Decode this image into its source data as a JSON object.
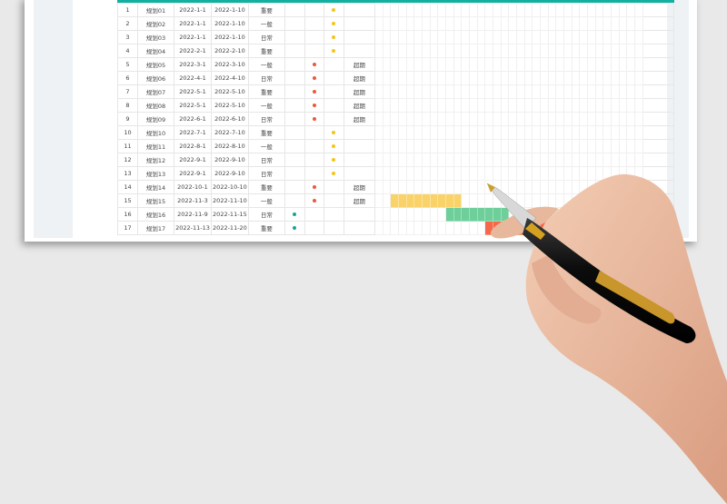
{
  "colors": {
    "header": "#12b0a0",
    "yellow": "#f5c518",
    "red": "#ea5a3c",
    "teal": "#1aa39a",
    "bar_yellow": "#f9d36a",
    "bar_green": "#6ecf9a",
    "bar_red": "#f5694a"
  },
  "gantt_columns": 34,
  "rows": [
    {
      "no": "1",
      "name": "规划01",
      "start": "2022-1-1",
      "end": "2022-1-10",
      "type": "重要",
      "dot": 3,
      "status": ""
    },
    {
      "no": "2",
      "name": "规划02",
      "start": "2022-1-1",
      "end": "2022-1-10",
      "type": "一般",
      "dot": 3,
      "status": ""
    },
    {
      "no": "3",
      "name": "规划03",
      "start": "2022-1-1",
      "end": "2022-1-10",
      "type": "日常",
      "dot": 3,
      "status": ""
    },
    {
      "no": "4",
      "name": "规划04",
      "start": "2022-2-1",
      "end": "2022-2-10",
      "type": "重要",
      "dot": 3,
      "status": ""
    },
    {
      "no": "5",
      "name": "规划05",
      "start": "2022-3-1",
      "end": "2022-3-10",
      "type": "一般",
      "dot": 2,
      "status": "超期"
    },
    {
      "no": "6",
      "name": "规划06",
      "start": "2022-4-1",
      "end": "2022-4-10",
      "type": "日常",
      "dot": 2,
      "status": "超期"
    },
    {
      "no": "7",
      "name": "规划07",
      "start": "2022-5-1",
      "end": "2022-5-10",
      "type": "重要",
      "dot": 2,
      "status": "超期"
    },
    {
      "no": "8",
      "name": "规划08",
      "start": "2022-5-1",
      "end": "2022-5-10",
      "type": "一般",
      "dot": 2,
      "status": "超期"
    },
    {
      "no": "9",
      "name": "规划09",
      "start": "2022-6-1",
      "end": "2022-6-10",
      "type": "日常",
      "dot": 2,
      "status": "超期"
    },
    {
      "no": "10",
      "name": "规划10",
      "start": "2022-7-1",
      "end": "2022-7-10",
      "type": "重要",
      "dot": 3,
      "status": ""
    },
    {
      "no": "11",
      "name": "规划11",
      "start": "2022-8-1",
      "end": "2022-8-10",
      "type": "一般",
      "dot": 3,
      "status": ""
    },
    {
      "no": "12",
      "name": "规划12",
      "start": "2022-9-1",
      "end": "2022-9-10",
      "type": "日常",
      "dot": 3,
      "status": ""
    },
    {
      "no": "13",
      "name": "规划13",
      "start": "2022-9-1",
      "end": "2022-9-10",
      "type": "日常",
      "dot": 3,
      "status": ""
    },
    {
      "no": "14",
      "name": "规划14",
      "start": "2022-10-1",
      "end": "2022-10-10",
      "type": "重要",
      "dot": 2,
      "status": "超期"
    },
    {
      "no": "15",
      "name": "规划15",
      "start": "2022-11-3",
      "end": "2022-11-10",
      "type": "一般",
      "dot": 2,
      "status": "超期",
      "bar": {
        "from": 2,
        "len": 9,
        "color": "y"
      }
    },
    {
      "no": "16",
      "name": "规划16",
      "start": "2022-11-9",
      "end": "2022-11-15",
      "type": "日常",
      "dot": 1,
      "status": "",
      "bar": {
        "from": 9,
        "len": 8,
        "color": "g"
      }
    },
    {
      "no": "17",
      "name": "规划17",
      "start": "2022-11-13",
      "end": "2022-11-20",
      "type": "重要",
      "dot": 1,
      "status": "",
      "bar": {
        "from": 14,
        "len": 9,
        "color": "r"
      }
    }
  ]
}
